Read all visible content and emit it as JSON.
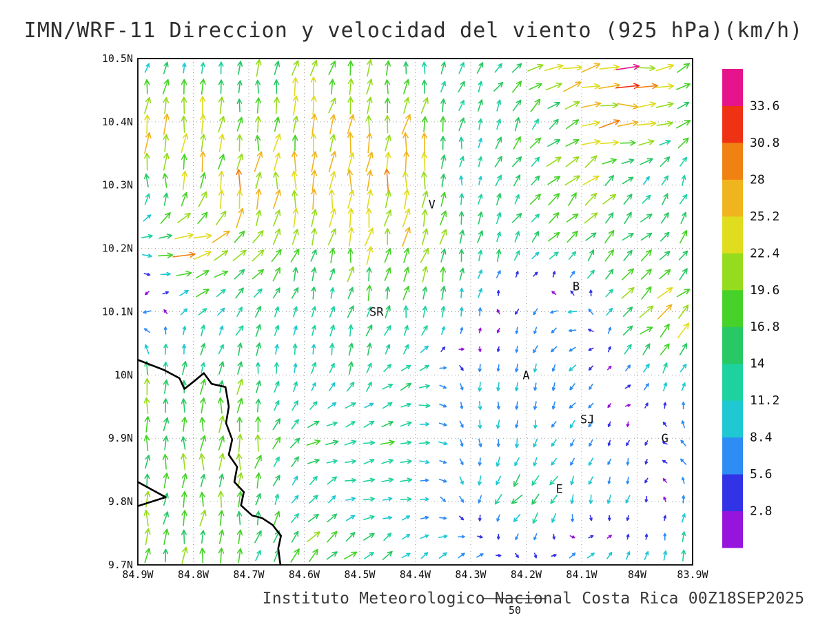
{
  "title": "IMN/WRF-11 Direccion y velocidad del viento (925 hPa)(km/h)",
  "caption": "Instituto Meteorologico Nacional Costa Rica 00Z18SEP2025",
  "reference_vector_label": "50",
  "chart_data": {
    "type": "vector_field",
    "title": "IMN/WRF-11 Direccion y velocidad del viento (925 hPa)(km/h)",
    "model": "IMN/WRF-11",
    "variable": "Direccion y velocidad del viento",
    "level": "925 hPa",
    "units": "km/h",
    "valid_time": "00Z18SEP2025",
    "grid": "dotted",
    "legend_position": "right",
    "x_axis": {
      "ticks": [
        84.9,
        84.8,
        84.7,
        84.6,
        84.5,
        84.4,
        84.3,
        84.2,
        84.1,
        84.0,
        83.9
      ],
      "labels": [
        "84.9W",
        "84.8W",
        "84.7W",
        "84.6W",
        "84.5W",
        "84.4W",
        "84.3W",
        "84.2W",
        "84.1W",
        "84W",
        "83.9W"
      ]
    },
    "y_axis": {
      "ticks": [
        10.5,
        10.4,
        10.3,
        10.2,
        10.1,
        10.0,
        9.9,
        9.8,
        9.7
      ],
      "labels": [
        "10.5N",
        "10.4N",
        "10.3N",
        "10.2N",
        "10.1N",
        "10N",
        "9.9N",
        "9.8N",
        "9.7N"
      ]
    },
    "colorbar": {
      "position": "right",
      "boundaries": [
        2.8,
        5.6,
        8.4,
        11.2,
        14,
        16.8,
        19.6,
        22.4,
        25.2,
        28,
        30.8,
        33.6
      ],
      "labels": [
        "2.8",
        "5.6",
        "8.4",
        "11.2",
        "14",
        "16.8",
        "19.6",
        "22.4",
        "25.2",
        "28",
        "30.8",
        "33.6"
      ],
      "colors": [
        "#9614dc",
        "#3232e6",
        "#2e8cf5",
        "#1fc8d2",
        "#1ed2a0",
        "#28c864",
        "#46d228",
        "#96dc1e",
        "#e0dc1e",
        "#f0b41e",
        "#f08214",
        "#f03214",
        "#e6148c"
      ]
    },
    "stations": [
      {
        "label": "V",
        "lon": 84.37,
        "lat": 10.27
      },
      {
        "label": "B",
        "lon": 84.11,
        "lat": 10.14
      },
      {
        "label": "SR",
        "lon": 84.47,
        "lat": 10.1
      },
      {
        "label": "A",
        "lon": 84.2,
        "lat": 10.0
      },
      {
        "label": "SJ",
        "lon": 84.09,
        "lat": 9.93
      },
      {
        "label": "G",
        "lon": 83.95,
        "lat": 9.9
      },
      {
        "label": "E",
        "lon": 84.14,
        "lat": 9.82
      }
    ],
    "coastline": [
      [
        [
          84.9,
          10.024
        ],
        [
          84.853,
          10.008
        ],
        [
          84.825,
          9.995
        ],
        [
          84.816,
          9.978
        ],
        [
          84.796,
          9.992
        ],
        [
          84.781,
          10.003
        ],
        [
          84.767,
          9.986
        ],
        [
          84.742,
          9.981
        ],
        [
          84.736,
          9.95
        ],
        [
          84.741,
          9.924
        ],
        [
          84.73,
          9.898
        ],
        [
          84.736,
          9.874
        ],
        [
          84.721,
          9.855
        ],
        [
          84.726,
          9.831
        ],
        [
          84.709,
          9.815
        ],
        [
          84.714,
          9.794
        ],
        [
          84.694,
          9.778
        ],
        [
          84.676,
          9.774
        ],
        [
          84.657,
          9.763
        ],
        [
          84.642,
          9.746
        ],
        [
          84.647,
          9.726
        ],
        [
          84.643,
          9.7
        ]
      ],
      [
        [
          84.9,
          9.831
        ],
        [
          84.85,
          9.807
        ],
        [
          84.9,
          9.793
        ]
      ]
    ],
    "wind_grid": {
      "note": "u,v wind components in km/h (u east, v north) estimated on a 0.1 degree grid",
      "lons": [
        84.9,
        84.8,
        84.7,
        84.6,
        84.5,
        84.4,
        84.3,
        84.2,
        84.1,
        84.0,
        83.9
      ],
      "lats": [
        10.5,
        10.4,
        10.3,
        10.2,
        10.1,
        10.0,
        9.9,
        9.8,
        9.7
      ],
      "uv": [
        [
          [
            2,
            10
          ],
          [
            4,
            11
          ],
          [
            3,
            17
          ],
          [
            6,
            21
          ],
          [
            2,
            18
          ],
          [
            1,
            14
          ],
          [
            6,
            10
          ],
          [
            15,
            8
          ],
          [
            27,
            6
          ],
          [
            30,
            3
          ],
          [
            10,
            12
          ]
        ],
        [
          [
            2,
            29
          ],
          [
            2,
            23
          ],
          [
            2,
            18
          ],
          [
            4,
            22
          ],
          [
            5,
            23
          ],
          [
            3,
            24
          ],
          [
            2,
            12
          ],
          [
            8,
            14
          ],
          [
            22,
            8
          ],
          [
            27,
            -2
          ],
          [
            13,
            12
          ]
        ],
        [
          [
            0,
            18
          ],
          [
            2,
            22
          ],
          [
            3,
            26
          ],
          [
            2,
            26
          ],
          [
            3,
            28
          ],
          [
            2,
            24
          ],
          [
            1,
            10
          ],
          [
            9,
            12
          ],
          [
            16,
            15
          ],
          [
            8,
            9
          ],
          [
            3,
            12
          ]
        ],
        [
          [
            10,
            0
          ],
          [
            32,
            2
          ],
          [
            14,
            17
          ],
          [
            4,
            18
          ],
          [
            4,
            22
          ],
          [
            8,
            20
          ],
          [
            3,
            16
          ],
          [
            7,
            10
          ],
          [
            11,
            12
          ],
          [
            13,
            13
          ],
          [
            11,
            11
          ]
        ],
        [
          [
            -10,
            -4
          ],
          [
            7,
            9
          ],
          [
            9,
            10
          ],
          [
            2,
            10
          ],
          [
            3,
            14
          ],
          [
            2,
            15
          ],
          [
            2,
            10
          ],
          [
            -3,
            -7
          ],
          [
            -9,
            2
          ],
          [
            17,
            14
          ],
          [
            19,
            16
          ]
        ],
        [
          [
            1,
            18
          ],
          [
            2,
            16
          ],
          [
            2,
            16
          ],
          [
            1,
            12
          ],
          [
            6,
            12
          ],
          [
            12,
            6
          ],
          [
            0,
            -9
          ],
          [
            -1,
            -8
          ],
          [
            -6,
            -7
          ],
          [
            8,
            8
          ],
          [
            2,
            11
          ]
        ],
        [
          [
            1,
            18
          ],
          [
            1,
            17
          ],
          [
            2,
            21
          ],
          [
            14,
            6
          ],
          [
            15,
            3
          ],
          [
            14,
            2
          ],
          [
            1,
            -9
          ],
          [
            -2,
            -8
          ],
          [
            -5,
            -5
          ],
          [
            -1,
            -4
          ],
          [
            -7,
            7
          ]
        ],
        [
          [
            1,
            18
          ],
          [
            2,
            18
          ],
          [
            2,
            17
          ],
          [
            8,
            9
          ],
          [
            11,
            3
          ],
          [
            11,
            1
          ],
          [
            1,
            -8
          ],
          [
            -13,
            -14
          ],
          [
            -2,
            -10
          ],
          [
            -2,
            -8
          ],
          [
            1,
            10
          ]
        ],
        [
          [
            2,
            18
          ],
          [
            2,
            18
          ],
          [
            2,
            14
          ],
          [
            16,
            17
          ],
          [
            11,
            11
          ],
          [
            8,
            8
          ],
          [
            8,
            8
          ],
          [
            3,
            -3
          ],
          [
            8,
            8
          ],
          [
            3,
            13
          ],
          [
            2,
            12
          ]
        ]
      ]
    }
  }
}
